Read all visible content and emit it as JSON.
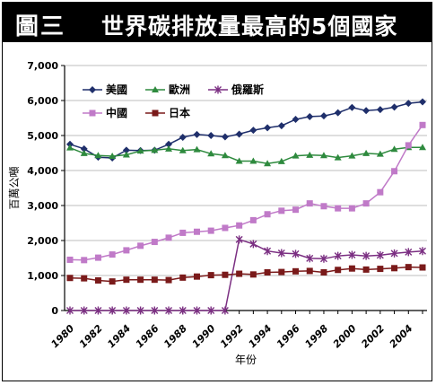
{
  "header": {
    "figure_label": "圖三",
    "title": "世界碳排放量最高的5個國家"
  },
  "chart_data": {
    "type": "line",
    "xlabel": "年份",
    "ylabel": "百萬公噸",
    "ylim": [
      0,
      7000
    ],
    "xlim": [
      1980,
      2005
    ],
    "yticks": [
      0,
      1000,
      2000,
      3000,
      4000,
      5000,
      6000,
      7000
    ],
    "ytick_labels": [
      "0",
      "1,000",
      "2,000",
      "3,000",
      "4,000",
      "5,000",
      "6,000",
      "7,000"
    ],
    "xticks": [
      1980,
      1982,
      1984,
      1986,
      1988,
      1990,
      1992,
      1994,
      1996,
      1998,
      2000,
      2002,
      2004
    ],
    "xtick_labels": [
      "1980",
      "1982",
      "1984",
      "1986",
      "1988",
      "1990",
      "1992",
      "1994",
      "1996",
      "1998",
      "2000",
      "2002",
      "2004"
    ],
    "grid": true,
    "legend_position": "top-left",
    "x": [
      1980,
      1981,
      1982,
      1983,
      1984,
      1985,
      1986,
      1987,
      1988,
      1989,
      1990,
      1991,
      1992,
      1993,
      1994,
      1995,
      1996,
      1997,
      1998,
      1999,
      2000,
      2001,
      2002,
      2003,
      2004,
      2005
    ],
    "series": [
      {
        "name": "美國",
        "color": "#1f2f6b",
        "marker": "diamond",
        "values": [
          4750,
          4620,
          4380,
          4360,
          4580,
          4570,
          4580,
          4750,
          4950,
          5030,
          5000,
          4960,
          5040,
          5150,
          5220,
          5280,
          5460,
          5540,
          5560,
          5650,
          5800,
          5710,
          5740,
          5810,
          5920,
          5960
        ]
      },
      {
        "name": "歐洲",
        "color": "#2e8a3e",
        "marker": "triangle",
        "values": [
          4650,
          4490,
          4430,
          4410,
          4450,
          4560,
          4580,
          4620,
          4570,
          4600,
          4480,
          4430,
          4270,
          4270,
          4200,
          4260,
          4420,
          4440,
          4430,
          4370,
          4420,
          4490,
          4470,
          4610,
          4660,
          4660
        ]
      },
      {
        "name": "俄羅斯",
        "color": "#7b2f82",
        "marker": "star",
        "values": [
          0,
          0,
          0,
          0,
          0,
          0,
          0,
          0,
          0,
          0,
          0,
          0,
          2030,
          1900,
          1700,
          1640,
          1620,
          1490,
          1480,
          1560,
          1590,
          1560,
          1580,
          1630,
          1670,
          1700
        ]
      },
      {
        "name": "中國",
        "color": "#c07ac8",
        "marker": "square",
        "values": [
          1450,
          1440,
          1510,
          1600,
          1720,
          1850,
          1960,
          2080,
          2220,
          2250,
          2280,
          2360,
          2430,
          2580,
          2750,
          2850,
          2880,
          3060,
          2980,
          2920,
          2920,
          3060,
          3380,
          3980,
          4720,
          5300
        ]
      },
      {
        "name": "日本",
        "color": "#7a1a1a",
        "marker": "square",
        "values": [
          930,
          920,
          860,
          830,
          880,
          880,
          880,
          870,
          940,
          970,
          1010,
          1020,
          1050,
          1030,
          1090,
          1100,
          1120,
          1130,
          1090,
          1160,
          1200,
          1170,
          1190,
          1210,
          1240,
          1230
        ]
      }
    ]
  }
}
